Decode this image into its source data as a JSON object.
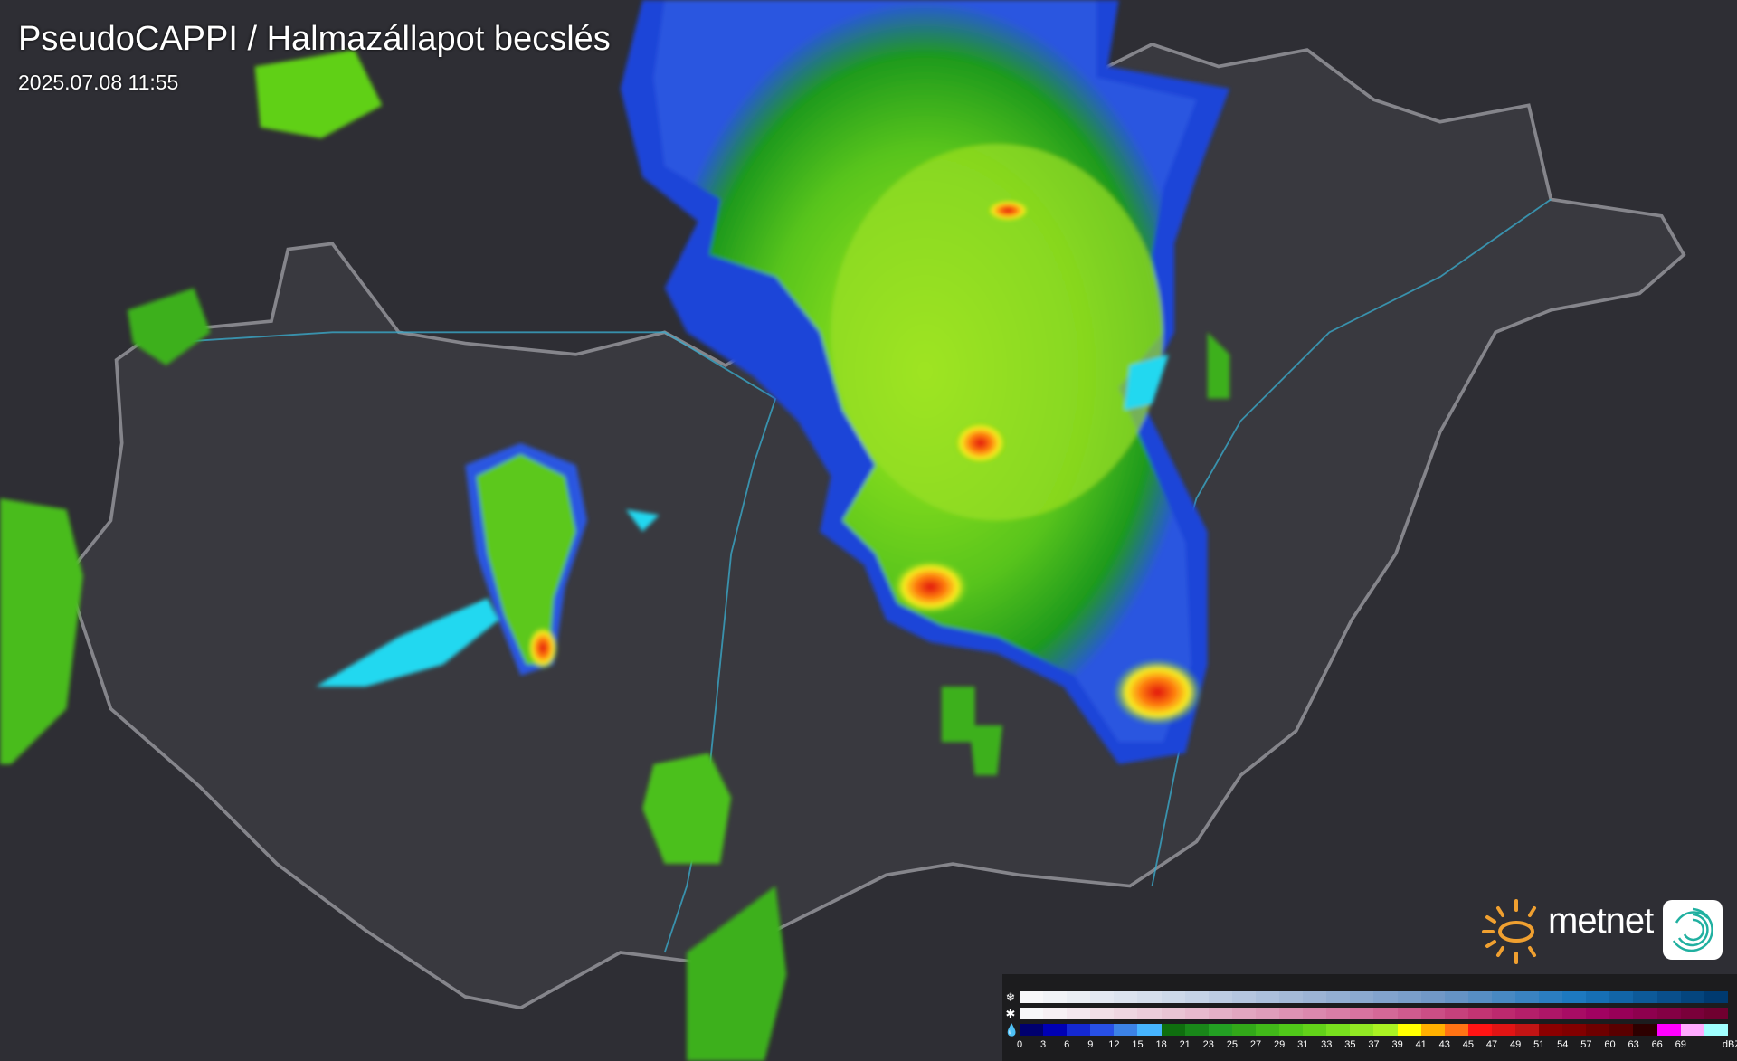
{
  "header": {
    "title": "PseudoCAPPI  / Halmazállapot becslés",
    "timestamp": "2025.07.08 11:55"
  },
  "logo": {
    "text": "metnet",
    "sun_color": "#f0a030",
    "icon_color": "#20b0a0"
  },
  "legend": {
    "unit": "dBZ",
    "icons": [
      "snowflake-icon",
      "graupel-icon",
      "raindrop-icon"
    ],
    "ticks": [
      "0",
      "3",
      "6",
      "9",
      "12",
      "15",
      "18",
      "21",
      "23",
      "25",
      "27",
      "29",
      "31",
      "33",
      "35",
      "37",
      "39",
      "41",
      "43",
      "45",
      "47",
      "49",
      "51",
      "54",
      "57",
      "60",
      "63",
      "66",
      "69"
    ],
    "rain_colors": [
      "#00006e",
      "#0000b4",
      "#1428d2",
      "#2850e6",
      "#3c82e6",
      "#46b4ff",
      "#0f6e0f",
      "#198719",
      "#23a023",
      "#32a819",
      "#41b919",
      "#50c819",
      "#62d219",
      "#78e01e",
      "#91e823",
      "#aaf223",
      "#ffff00",
      "#ffb000",
      "#ff7314",
      "#ff1414",
      "#e11414",
      "#c31414",
      "#8c0000",
      "#820000",
      "#6e0000",
      "#5a0000",
      "#2d0000",
      "#ff00ff",
      "#ffaaff",
      "#a0ffff"
    ],
    "snow_range": [
      "#f8f8fa",
      "#cfdaea",
      "#9fb6d6",
      "#6e96c6",
      "#1a78c0",
      "#003a70"
    ],
    "graupel_range": [
      "#f8f8fa",
      "#eccfdc",
      "#e0a0bc",
      "#d66e9c",
      "#c03070",
      "#a00060",
      "#700030"
    ]
  }
}
